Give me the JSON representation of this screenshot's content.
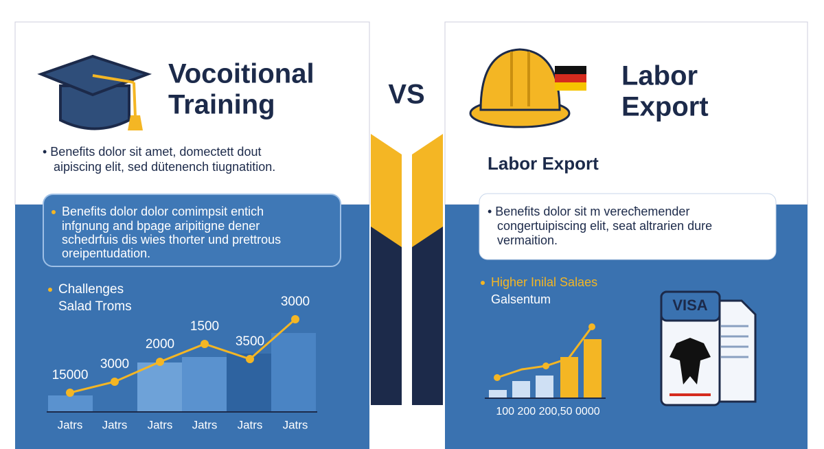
{
  "left": {
    "title": [
      "Vocoitional",
      "Training"
    ],
    "bullet": [
      "• Benefits dolor sit amet, domectett dout",
      "aipiscing elit, sed dütenench tiugnatition."
    ],
    "box": [
      "Benefits dolor dolor comimpsit entich",
      "infgnung and bpage aripitigne dener",
      "schedrfuis dis wies thorter und prettrous",
      "oreipentudation."
    ],
    "chart_title": [
      "Challenges",
      "Salad Troms"
    ],
    "point_labels": [
      "15000",
      "3000",
      "2000",
      "1500",
      "3500",
      "3000"
    ],
    "x_labels": [
      "Jatrs",
      "Jatrs",
      "Jatrs",
      "Jatrs",
      "Jatrs",
      "Jatrs"
    ]
  },
  "vs": "VS",
  "right": {
    "title": [
      "Labor",
      "Export"
    ],
    "subtitle": "Labor Export",
    "box": [
      "• Benefits dolor sit m verecħemender",
      "congertuipiscing elit, seat altrarien dure",
      "vermaition."
    ],
    "chart_title": [
      "Higher Inilal Salaes",
      "Galsentum"
    ],
    "axis_label": "100 200 200,50 0000",
    "visa": "VISA"
  }
}
